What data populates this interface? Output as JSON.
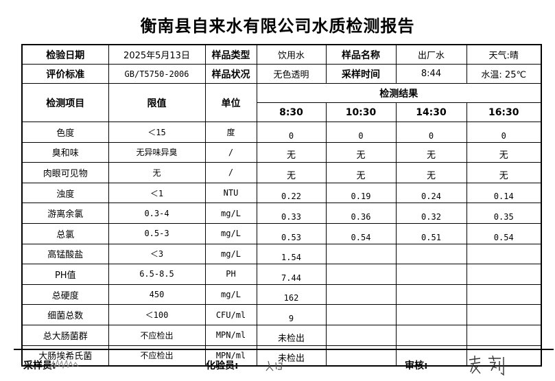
{
  "title": "衡南县自来水有限公司水质检测报告",
  "info": {
    "date_label": "检验日期",
    "date": "2025年5月13日",
    "type_label": "样品类型",
    "type": "饮用水",
    "name_label": "样品名称",
    "name": "出厂水",
    "weather": "天气:晴",
    "std_label": "评价标准",
    "std": "GB/T5750-2006",
    "status_label": "样品状况",
    "status": "无色透明",
    "time_label": "采样时间",
    "time": "8:44",
    "water_temp": "水温: 25℃"
  },
  "header": {
    "item": "检测项目",
    "limit": "限值",
    "unit": "单位",
    "results": "检测结果",
    "times": [
      "8:30",
      "10:30",
      "14:30",
      "16:30"
    ]
  },
  "rows": [
    {
      "item": "色度",
      "limit": "＜15",
      "unit": "度",
      "v": [
        "0",
        "0",
        "0",
        "0"
      ]
    },
    {
      "item": "臭和味",
      "limit": "无异味异臭",
      "unit": "/",
      "v": [
        "无",
        "无",
        "无",
        "无"
      ]
    },
    {
      "item": "肉眼可见物",
      "limit": "无",
      "unit": "/",
      "v": [
        "无",
        "无",
        "无",
        "无"
      ]
    },
    {
      "item": "浊度",
      "limit": "＜1",
      "unit": "NTU",
      "v": [
        "0.22",
        "0.19",
        "0.24",
        "0.14"
      ]
    },
    {
      "item": "游离余氯",
      "limit": "0.3-4",
      "unit": "mg/L",
      "v": [
        "0.33",
        "0.36",
        "0.32",
        "0.35"
      ]
    },
    {
      "item": "总氯",
      "limit": "0.5-3",
      "unit": "mg/L",
      "v": [
        "0.53",
        "0.54",
        "0.51",
        "0.54"
      ]
    },
    {
      "item": "高锰酸盐",
      "limit": "＜3",
      "unit": "mg/L",
      "v": [
        "1.54",
        "",
        "",
        ""
      ]
    },
    {
      "item": "PH值",
      "limit": "6.5-8.5",
      "unit": "PH",
      "v": [
        "7.44",
        "",
        "",
        ""
      ]
    },
    {
      "item": "总硬度",
      "limit": "450",
      "unit": "mg/L",
      "v": [
        "162",
        "",
        "",
        ""
      ]
    },
    {
      "item": "细菌总数",
      "limit": "＜100",
      "unit": "CFU/ml",
      "v": [
        "9",
        "",
        "",
        ""
      ]
    },
    {
      "item": "总大肠菌群",
      "limit": "不应检出",
      "unit": "MPN/ml",
      "v": [
        "未检出",
        "",
        "",
        ""
      ]
    },
    {
      "item": "大肠埃希氏菌",
      "limit": "不应检出",
      "unit": "MPN/ml",
      "v": [
        "未检出",
        "",
        "",
        ""
      ]
    }
  ],
  "footer": {
    "sampler_label": "采样员:",
    "tester_label": "化验员:",
    "reviewer_label": "审核:",
    "reviewer_signature": "袁莉"
  }
}
